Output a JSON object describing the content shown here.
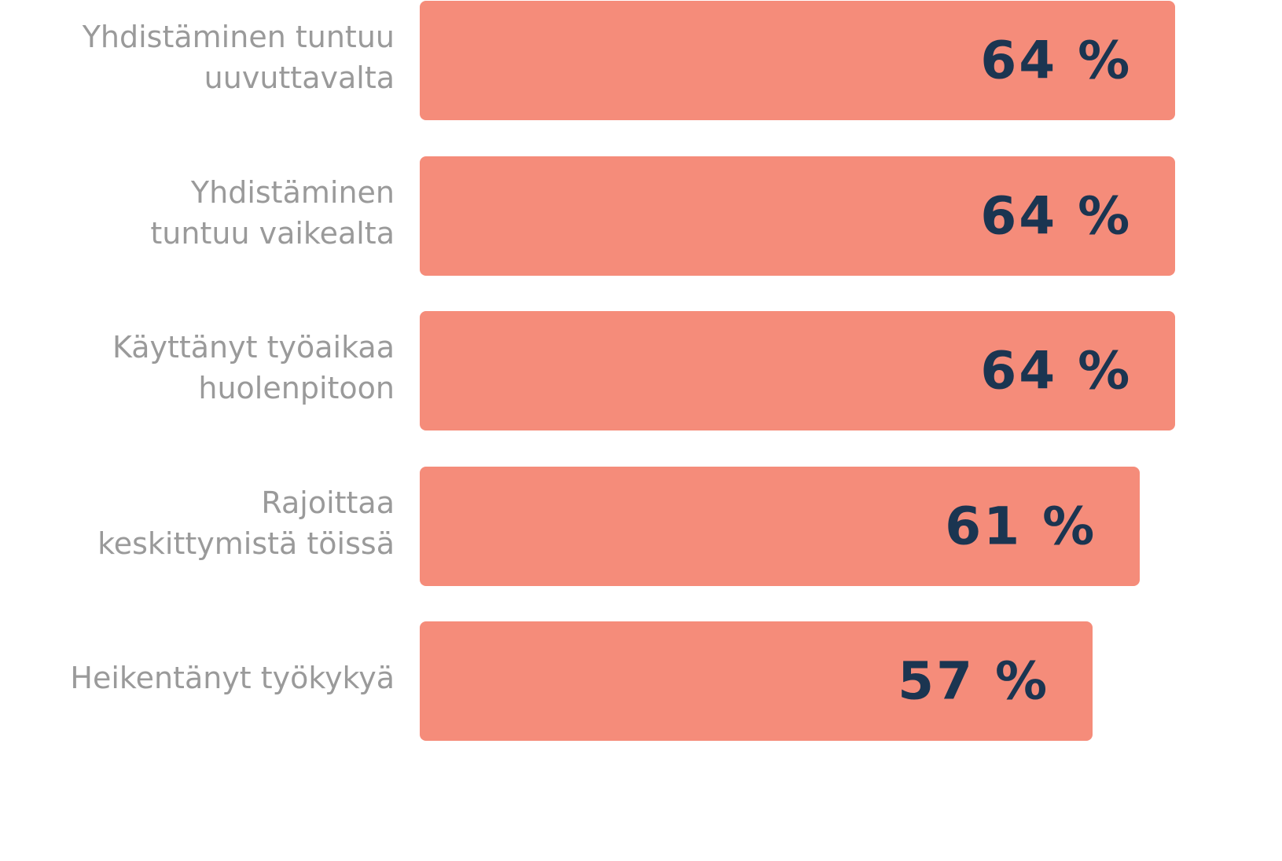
{
  "chart_data": {
    "type": "bar",
    "orientation": "horizontal",
    "categories": [
      "Yhdistäminen tuntuu\nuuvuttavalta",
      "Yhdistäminen\ntuntuu vaikealta",
      "Käyttänyt työaikaa\nhuolenpitoon",
      "Rajoittaa\nkeskittymistä töissä",
      "Heikentänyt työkykyä"
    ],
    "values": [
      64,
      64,
      64,
      61,
      57
    ],
    "value_labels": [
      "64 %",
      "64 %",
      "64 %",
      "61 %",
      "57 %"
    ],
    "color": "#f58c7a"
  }
}
